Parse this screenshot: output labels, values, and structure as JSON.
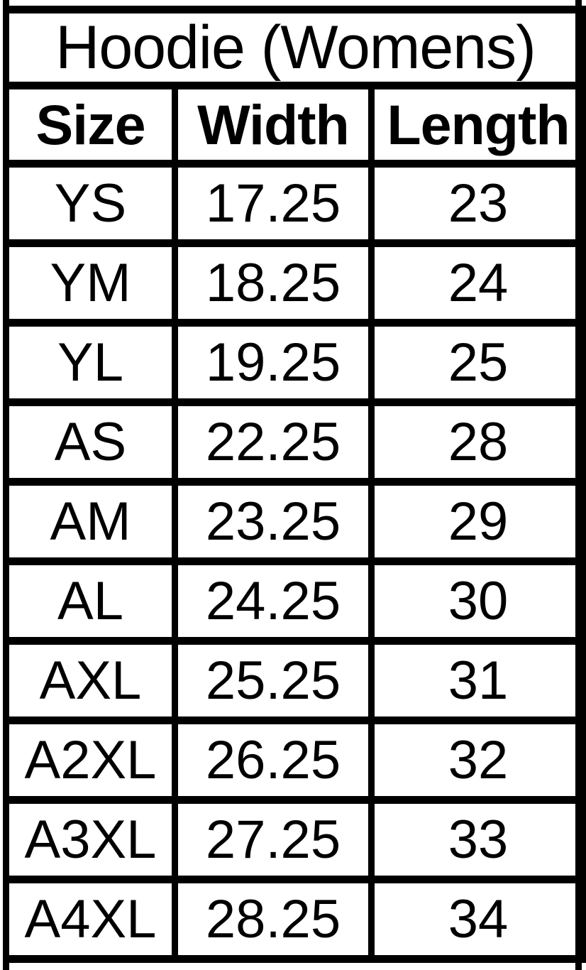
{
  "chart_data": {
    "type": "table",
    "title": "Hoodie (Womens)",
    "columns": [
      "Size",
      "Width",
      "Length"
    ],
    "rows": [
      [
        "YS",
        "17.25",
        "23"
      ],
      [
        "YM",
        "18.25",
        "24"
      ],
      [
        "YL",
        "19.25",
        "25"
      ],
      [
        "AS",
        "22.25",
        "28"
      ],
      [
        "AM",
        "23.25",
        "29"
      ],
      [
        "AL",
        "24.25",
        "30"
      ],
      [
        "AXL",
        "25.25",
        "31"
      ],
      [
        "A2XL",
        "26.25",
        "32"
      ],
      [
        "A3XL",
        "27.25",
        "33"
      ],
      [
        "A4XL",
        "28.25",
        "34"
      ]
    ]
  },
  "colors": {
    "border": "#000000",
    "background": "#ffffff",
    "text": "#000000"
  }
}
